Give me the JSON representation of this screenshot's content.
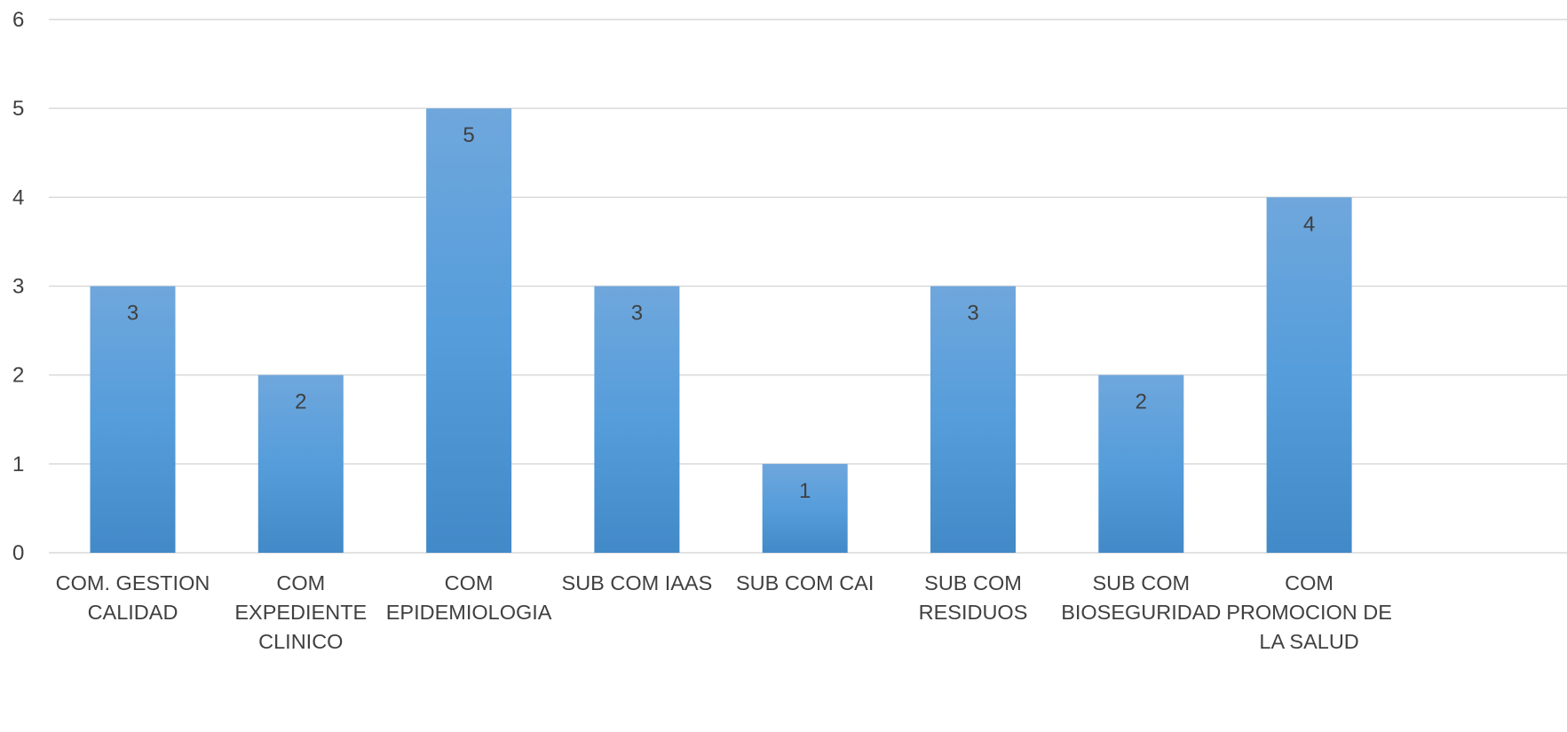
{
  "chart_data": {
    "type": "bar",
    "title": "",
    "xlabel": "",
    "ylabel": "",
    "ylim": [
      0,
      6
    ],
    "yticks": [
      0,
      1,
      2,
      3,
      4,
      5,
      6
    ],
    "grid": true,
    "legend": "none",
    "categories": [
      [
        "COM. GESTION",
        "CALIDAD"
      ],
      [
        "COM",
        "EXPEDIENTE",
        "CLINICO"
      ],
      [
        "COM",
        "EPIDEMIOLOGIA"
      ],
      [
        "SUB COM IAAS"
      ],
      [
        "SUB COM CAI"
      ],
      [
        "SUB COM",
        "RESIDUOS"
      ],
      [
        "SUB COM",
        "BIOSEGURIDAD"
      ],
      [
        "COM",
        "PROMOCION DE",
        "LA SALUD"
      ]
    ],
    "values": [
      3,
      2,
      5,
      3,
      1,
      3,
      2,
      4
    ],
    "data_labels": [
      "3",
      "2",
      "5",
      "3",
      "1",
      "3",
      "2",
      "4"
    ],
    "colors": {
      "bar_top": "#6fa7dc",
      "bar_mid": "#559ddb",
      "bar_bottom": "#4289c8",
      "grid": "#d9d9d9",
      "text": "#404040"
    }
  }
}
